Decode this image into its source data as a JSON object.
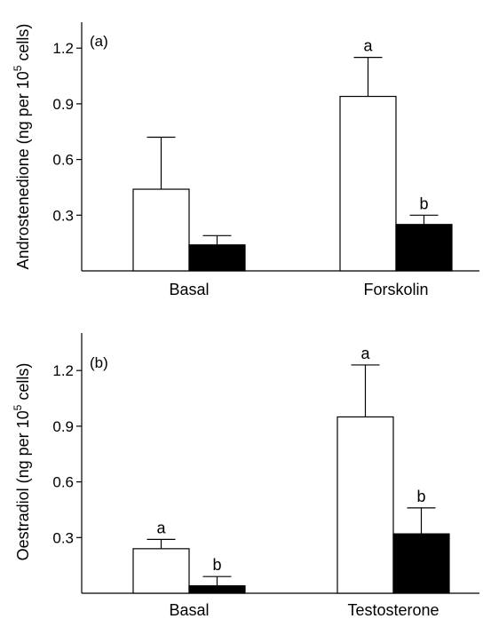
{
  "chart_data": [
    {
      "type": "bar",
      "panel_label": "(a)",
      "ylabel_parts": [
        "Androstenedione (ng per 10",
        "5",
        " cells)"
      ],
      "categories": [
        "Basal",
        "Forskolin"
      ],
      "series": [
        {
          "fill": "#ffffff",
          "values": [
            0.44,
            0.94
          ],
          "errors": [
            0.28,
            0.21
          ],
          "sig": [
            "",
            "a"
          ]
        },
        {
          "fill": "#000000",
          "values": [
            0.14,
            0.25
          ],
          "errors": [
            0.05,
            0.05
          ],
          "sig": [
            "",
            "b"
          ]
        }
      ],
      "ylim": [
        0,
        1.35
      ],
      "yticks": [
        0.3,
        0.6,
        0.9,
        1.2
      ],
      "ytick_labels": [
        "0.3",
        "0.6",
        "0.9",
        "1.2"
      ],
      "grid": false
    },
    {
      "type": "bar",
      "panel_label": "(b)",
      "ylabel_parts": [
        "Oestradiol (ng per 10",
        "5",
        " cells)"
      ],
      "categories": [
        "Basal",
        "Testosterone"
      ],
      "series": [
        {
          "fill": "#ffffff",
          "values": [
            0.24,
            0.95
          ],
          "errors": [
            0.05,
            0.28
          ],
          "sig": [
            "a",
            "a"
          ]
        },
        {
          "fill": "#000000",
          "values": [
            0.04,
            0.32
          ],
          "errors": [
            0.05,
            0.14
          ],
          "sig": [
            "b",
            "b"
          ]
        }
      ],
      "ylim": [
        0,
        1.35
      ],
      "yticks": [
        0.3,
        0.6,
        0.9,
        1.2
      ],
      "ytick_labels": [
        "0.3",
        "0.6",
        "0.9",
        "1.2"
      ],
      "grid": false
    }
  ]
}
